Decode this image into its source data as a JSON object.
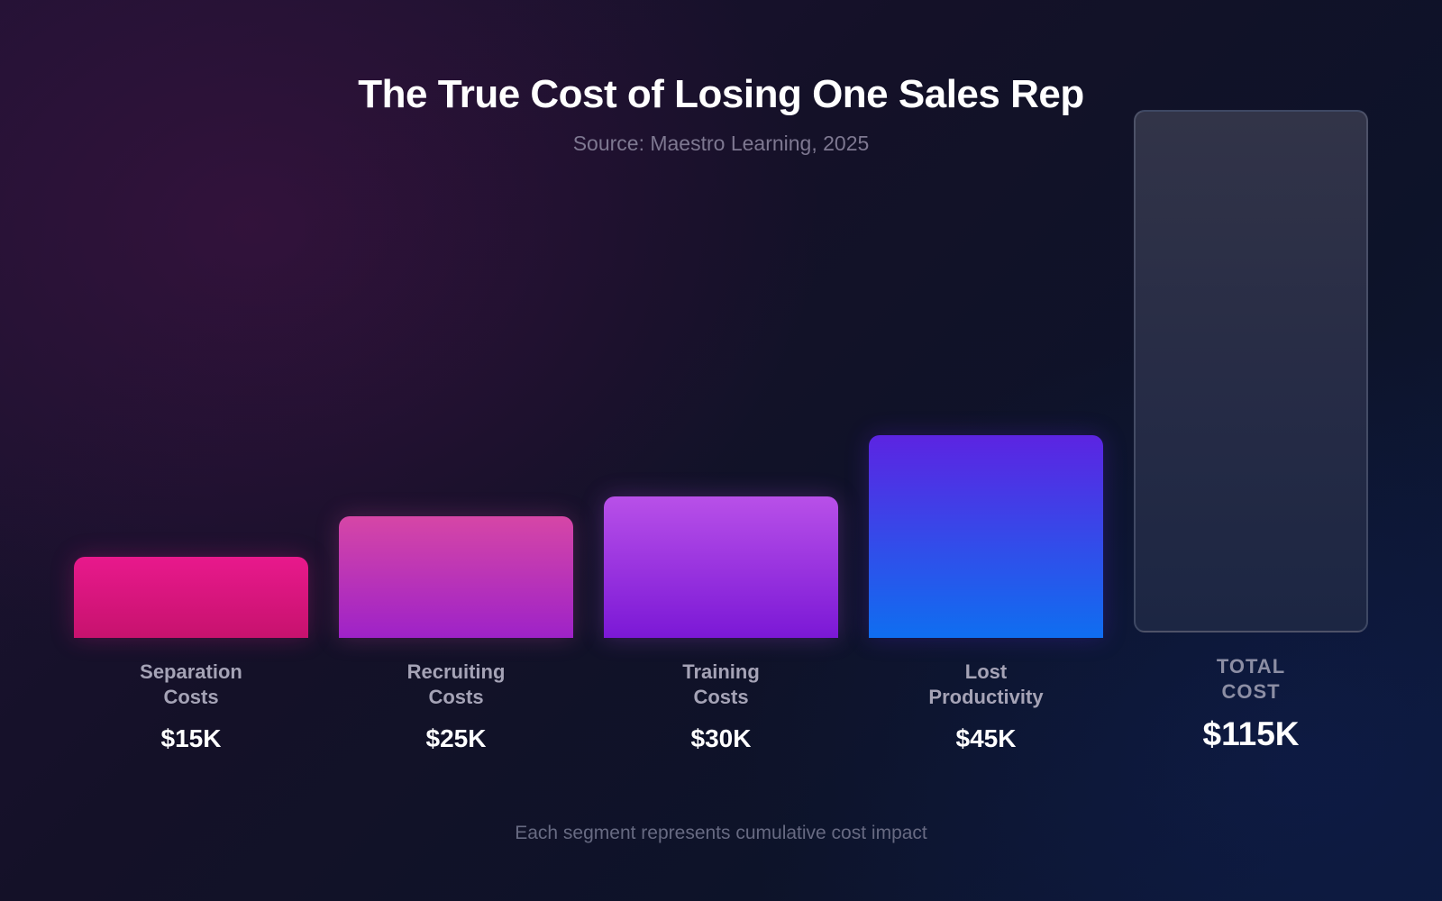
{
  "chart_data": {
    "type": "bar",
    "title": "The True Cost of Losing One Sales Rep",
    "subtitle": "Source: Maestro Learning, 2025",
    "categories": [
      "Separation\nCosts",
      "Recruiting\nCosts",
      "Training\nCosts",
      "Lost\nProductivity",
      "TOTAL\nCOST"
    ],
    "values": [
      15,
      25,
      30,
      45,
      115
    ],
    "value_labels": [
      "$15K",
      "$25K",
      "$30K",
      "$45K",
      "$115K"
    ],
    "unit": "$K",
    "bar_colors": [
      [
        "#e8198c",
        "#c7126e"
      ],
      [
        "#d646a6",
        "#9e22c8"
      ],
      [
        "#b850e8",
        "#7b18d6"
      ],
      [
        "#5c24e2",
        "#0f6ef0"
      ],
      [
        "#323448",
        "#1c2643"
      ]
    ],
    "ylim": [
      0,
      115
    ],
    "grid": false,
    "legend": "none",
    "footnote": "Each segment represents cumulative cost impact"
  }
}
